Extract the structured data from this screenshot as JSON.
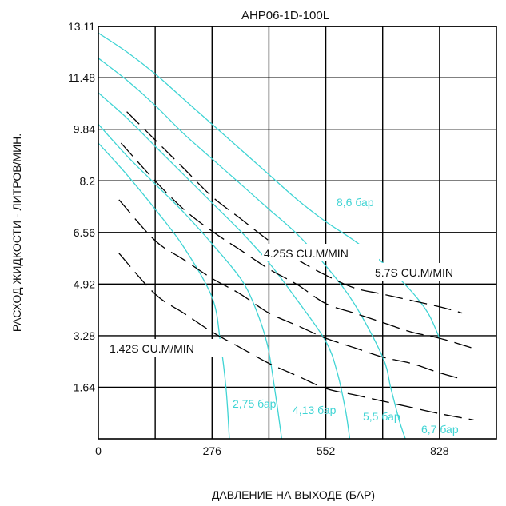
{
  "chart_data": {
    "type": "line",
    "title": "AHP06-1D-100L",
    "xlabel": "ДАВЛЕНИЕ НА ВЫХОДЕ (БАР)",
    "ylabel": "РАСХОД ЖИДКОСТИ - ЛИТРОВ/МИН.",
    "xlim": [
      0,
      966
    ],
    "ylim": [
      0,
      13.11
    ],
    "x_ticks": [
      "0",
      "276",
      "552",
      "828"
    ],
    "y_ticks": [
      "1.64",
      "3.28",
      "4.92",
      "6.56",
      "8.2",
      "9.84",
      "11.48",
      "13.11"
    ],
    "grid": true,
    "colors": {
      "pressure_curves": "#3fd4d4",
      "air_curves": "#000000"
    },
    "series": [
      {
        "name": "8,6 бар",
        "kind": "air-pressure",
        "color": "#3fd4d4",
        "x": [
          0,
          69,
          138,
          207,
          276,
          345,
          414,
          483,
          552,
          621,
          690,
          759,
          800,
          828
        ],
        "y": [
          12.9,
          12.3,
          11.6,
          10.8,
          10.0,
          9.2,
          8.4,
          7.6,
          6.9,
          6.3,
          5.6,
          4.7,
          4.0,
          3.2
        ]
      },
      {
        "name": "6,7 бар",
        "kind": "air-pressure",
        "color": "#3fd4d4",
        "x": [
          0,
          69,
          138,
          207,
          276,
          345,
          414,
          483,
          552,
          621,
          690,
          710,
          730,
          745
        ],
        "y": [
          12.1,
          11.4,
          10.6,
          9.7,
          8.9,
          8.1,
          7.3,
          6.5,
          5.5,
          4.3,
          2.6,
          1.6,
          0.6,
          0.0
        ]
      },
      {
        "name": "5,5 бар",
        "kind": "air-pressure",
        "color": "#3fd4d4",
        "x": [
          0,
          69,
          138,
          207,
          276,
          345,
          414,
          483,
          552,
          580,
          600,
          610
        ],
        "y": [
          11.0,
          10.2,
          9.3,
          8.4,
          7.5,
          6.6,
          5.6,
          4.4,
          3.1,
          2.1,
          0.9,
          0.0
        ]
      },
      {
        "name": "4,13 бар",
        "kind": "air-pressure",
        "color": "#3fd4d4",
        "x": [
          0,
          69,
          138,
          207,
          276,
          345,
          380,
          410,
          430,
          445
        ],
        "y": [
          10.0,
          9.0,
          8.1,
          7.2,
          6.2,
          5.1,
          4.2,
          3.0,
          1.4,
          0.0
        ]
      },
      {
        "name": "2,75 бар",
        "kind": "air-pressure",
        "color": "#3fd4d4",
        "x": [
          0,
          69,
          138,
          207,
          276,
          296,
          310,
          318
        ],
        "y": [
          9.4,
          8.4,
          7.3,
          6.1,
          4.5,
          3.1,
          1.6,
          0.0
        ]
      },
      {
        "name": "5.7S CU.M/MIN",
        "kind": "air-consumption",
        "color": "#000000",
        "x": [
          69,
          138,
          207,
          276,
          345,
          414,
          483,
          552,
          621,
          690,
          759,
          828,
          883
        ],
        "y": [
          10.4,
          9.5,
          8.6,
          7.7,
          7.0,
          6.3,
          5.7,
          5.2,
          4.8,
          4.6,
          4.4,
          4.2,
          4.0
        ]
      },
      {
        "name": "4.25S CU.M/MIN",
        "kind": "air-consumption",
        "color": "#000000",
        "x": [
          55,
          138,
          207,
          276,
          345,
          414,
          483,
          552,
          621,
          690,
          759,
          828,
          905
        ],
        "y": [
          9.4,
          8.2,
          7.3,
          6.6,
          6.0,
          5.4,
          4.9,
          4.3,
          4.0,
          3.7,
          3.4,
          3.2,
          2.9
        ]
      },
      {
        "name": "",
        "kind": "air-consumption",
        "color": "#000000",
        "x": [
          50,
          138,
          207,
          276,
          345,
          414,
          483,
          552,
          621,
          690,
          759,
          828,
          883
        ],
        "y": [
          7.6,
          6.3,
          5.7,
          5.1,
          4.6,
          4.0,
          3.6,
          3.2,
          2.9,
          2.6,
          2.4,
          2.1,
          1.9
        ]
      },
      {
        "name": "1.42S CU.M/MIN",
        "kind": "air-consumption",
        "color": "#000000",
        "x": [
          50,
          138,
          207,
          276,
          345,
          414,
          483,
          552,
          621,
          690,
          759,
          828,
          911
        ],
        "y": [
          5.9,
          4.6,
          4.0,
          3.4,
          2.9,
          2.4,
          2.0,
          1.6,
          1.4,
          1.2,
          1.0,
          0.8,
          0.6
        ]
      }
    ],
    "annotations": [
      "8,6 бар",
      "6,7 бар",
      "5,5 бар",
      "4,13 бар",
      "2,75 бар",
      "4.25S CU.M/MIN",
      "5.7S CU.M/MIN",
      "1.42S CU.M/MIN"
    ]
  }
}
